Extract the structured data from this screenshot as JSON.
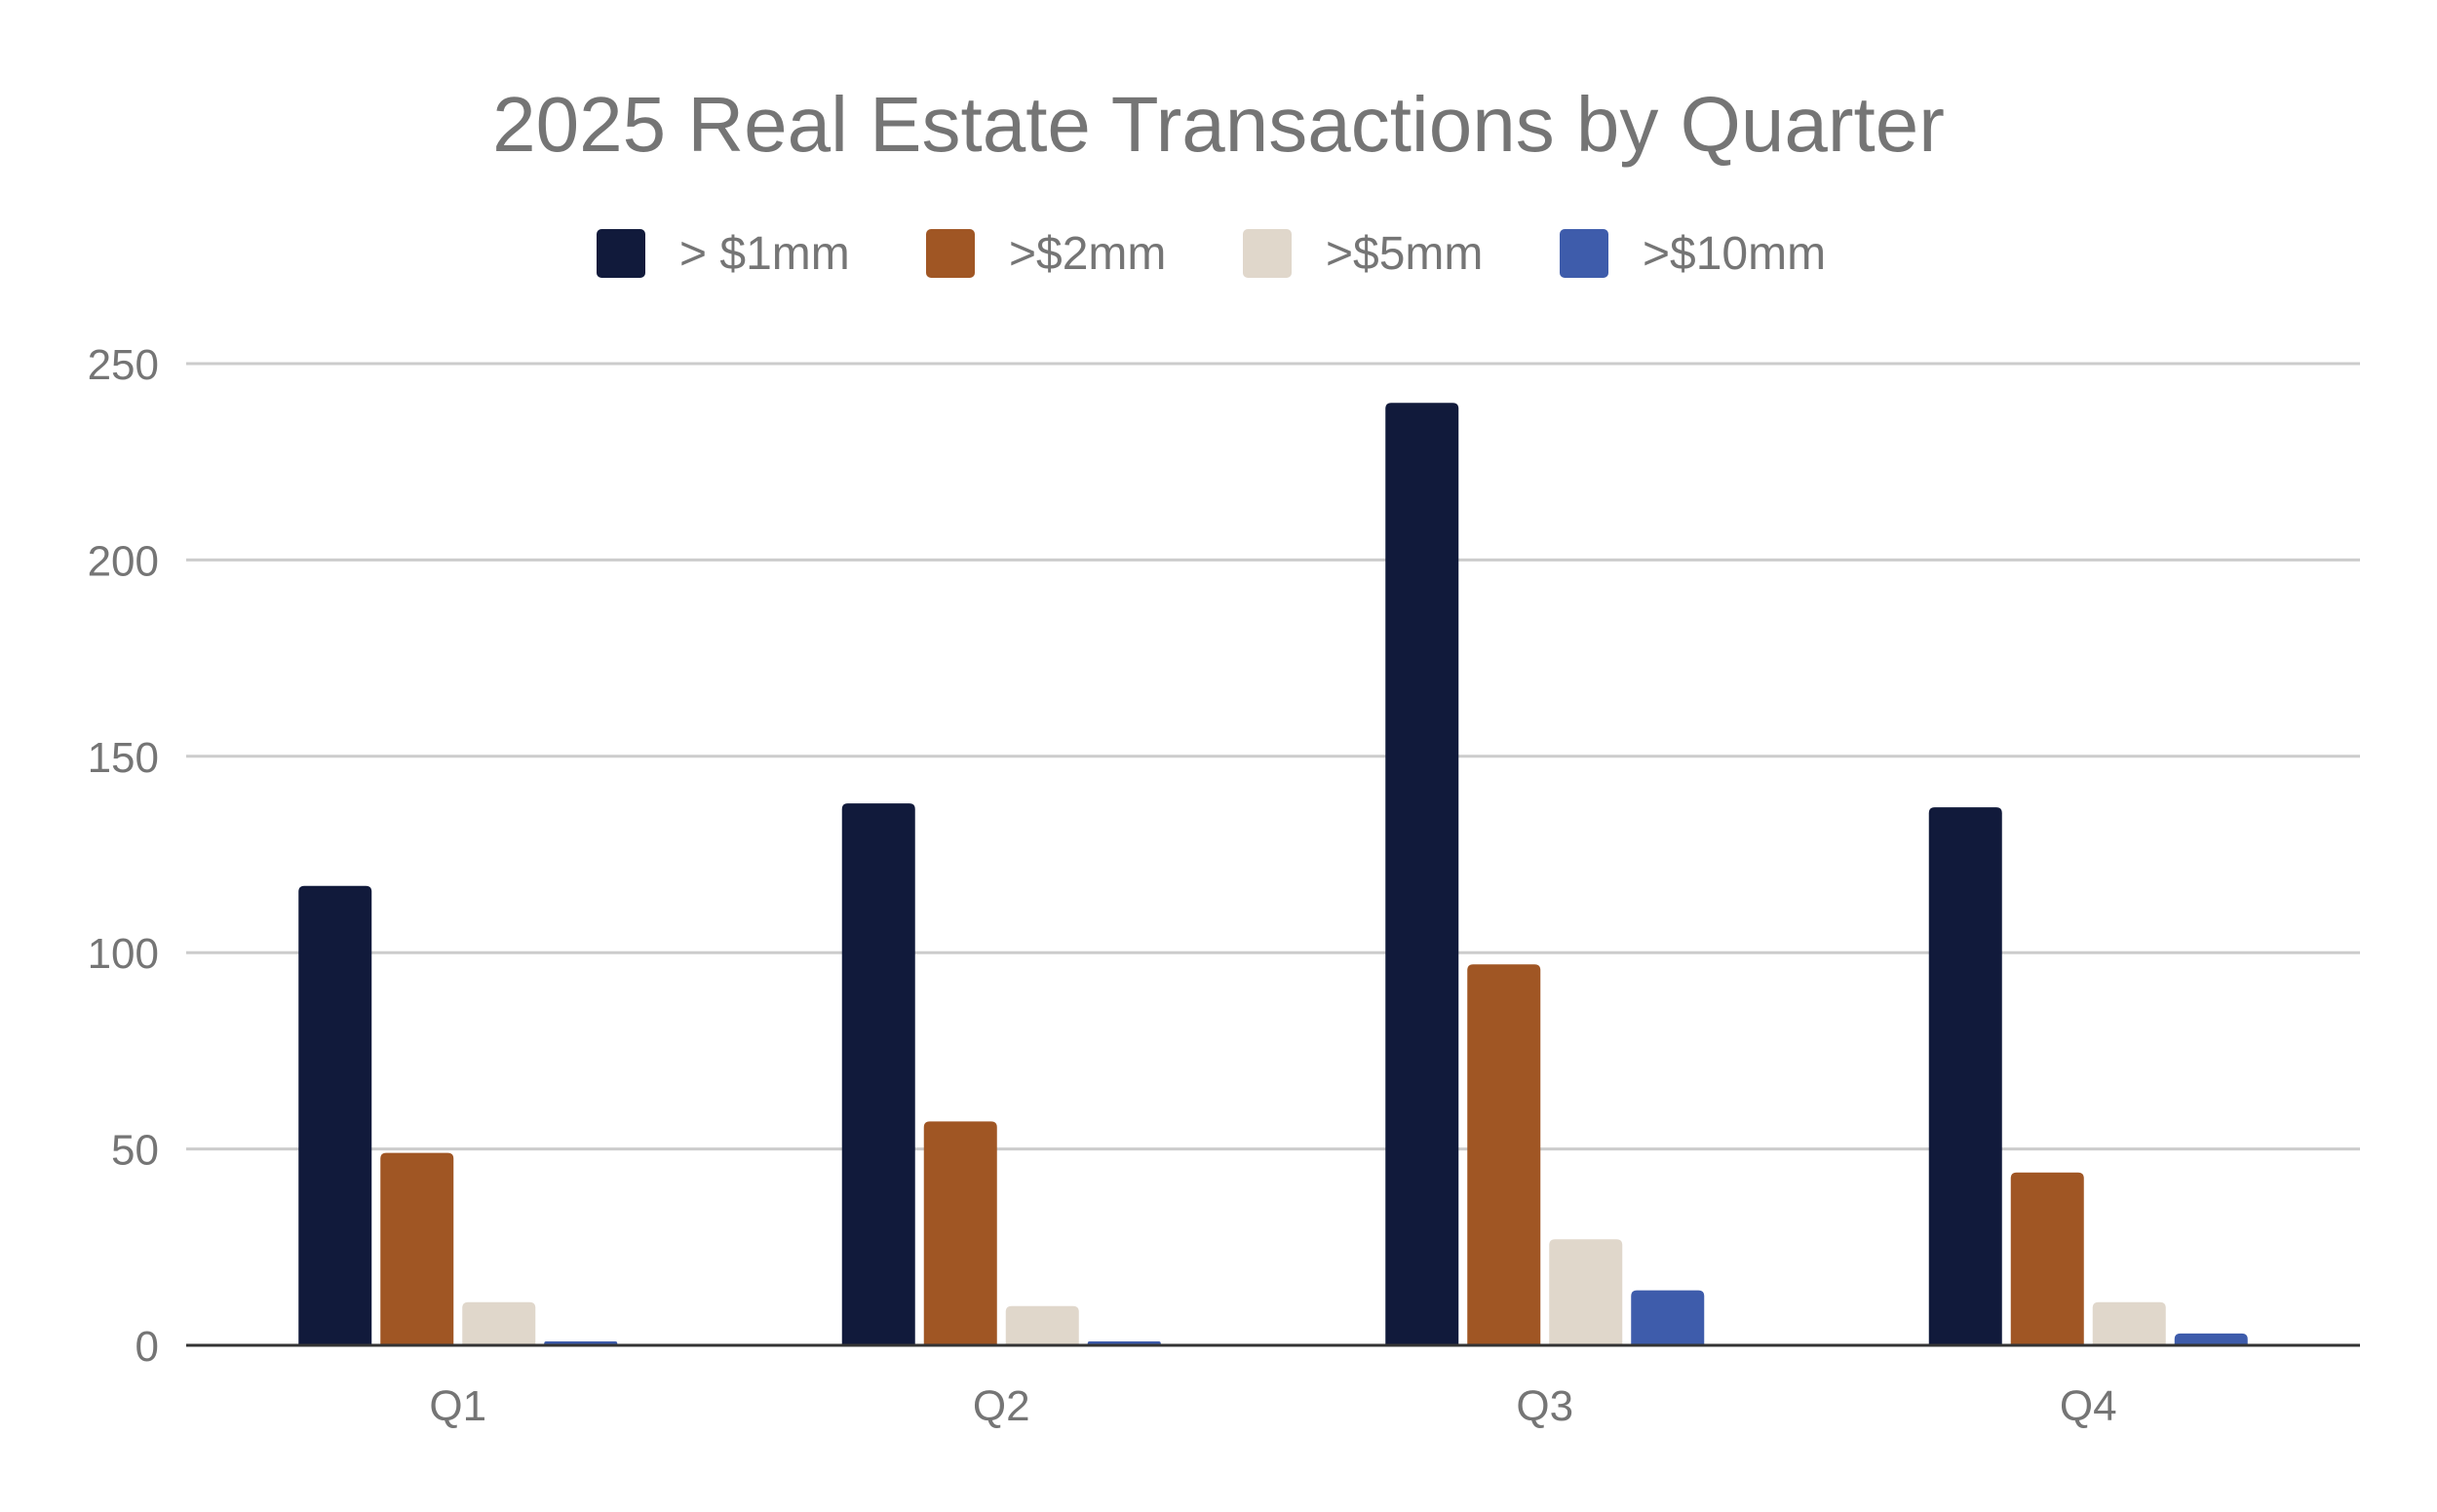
{
  "chart_data": {
    "type": "bar",
    "title": "2025 Real Estate Transactions by Quarter",
    "categories": [
      "Q1",
      "Q2",
      "Q3",
      "Q4"
    ],
    "series": [
      {
        "name": "> $1mm",
        "color": "#111a3b",
        "values": [
          117,
          138,
          240,
          137
        ]
      },
      {
        "name": ">$2mm",
        "color": "#a05624",
        "values": [
          49,
          57,
          97,
          44
        ]
      },
      {
        "name": ">$5mm",
        "color": "#e0d7cb",
        "values": [
          11,
          10,
          27,
          11
        ]
      },
      {
        "name": ">$10mm",
        "color": "#3e5cab",
        "values": [
          1,
          1,
          14,
          3
        ]
      }
    ],
    "xlabel": "",
    "ylabel": "",
    "ylim": [
      0,
      250
    ],
    "yticks": [
      0,
      50,
      100,
      150,
      200,
      250
    ],
    "grid": true,
    "legend_position": "top-center"
  }
}
